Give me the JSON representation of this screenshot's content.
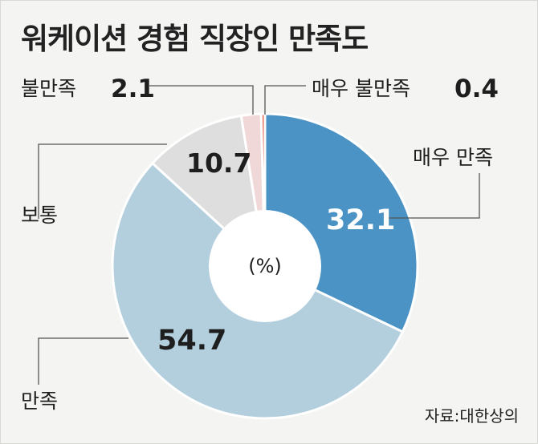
{
  "source": "자료:대한상의",
  "chart_data": {
    "type": "pie",
    "donut": true,
    "title": "워케이션 경험 직장인 만족도",
    "center_label": "(%)",
    "unit": "%",
    "slices": [
      {
        "label": "매우 만족",
        "value": 32.1,
        "color": "#4a93c4"
      },
      {
        "label": "만족",
        "value": 54.7,
        "color": "#b3cfde"
      },
      {
        "label": "보통",
        "value": 10.7,
        "color": "#dddedd"
      },
      {
        "label": "불만족",
        "value": 2.1,
        "color": "#f1d8d8"
      },
      {
        "label": "매우 불만족",
        "value": 0.4,
        "color": "#e57360"
      }
    ]
  }
}
